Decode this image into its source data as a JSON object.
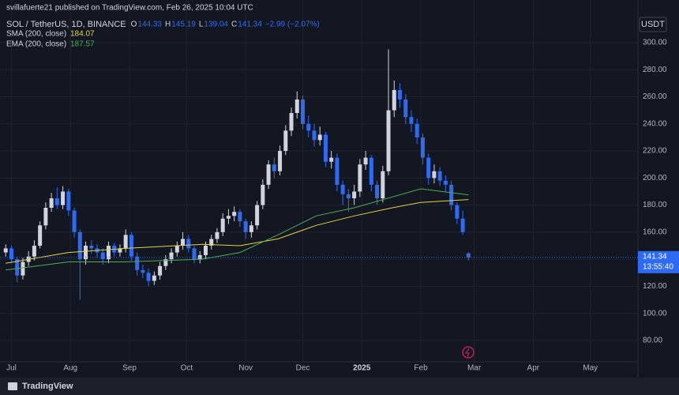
{
  "header": {
    "publisher": "svillafuerte21 published on TradingView.com, Feb 26, 2025 10:04 UTC"
  },
  "footer": {
    "brand": "TradingView"
  },
  "chart_data": {
    "type": "candlestick",
    "title": "SOL / TetherUS, 1D, BINANCE",
    "legend": [
      {
        "key": "O",
        "text": "144.33"
      },
      {
        "key": "H",
        "text": "145.19"
      },
      {
        "key": "L",
        "text": "139.04"
      },
      {
        "key": "C",
        "text": "141.34"
      }
    ],
    "change": "−2.99 (−2.07%)",
    "currency": "USDT",
    "countdown": "13:55:40",
    "up_color": "#d1d4dc",
    "down_color": "#2f6bf2",
    "x": [
      -3,
      0,
      3,
      6,
      9,
      12,
      15,
      18,
      21,
      24,
      27,
      30,
      33,
      36,
      39,
      42,
      45,
      48,
      51,
      54,
      57,
      60,
      63,
      66,
      69,
      72,
      75,
      78,
      81,
      84,
      87,
      90,
      93,
      96,
      99,
      102,
      105,
      108,
      111,
      114,
      117,
      120,
      123,
      126,
      129,
      132,
      135,
      138,
      141,
      144,
      147,
      150,
      153,
      156,
      159,
      162,
      165,
      168,
      171,
      174,
      177,
      180,
      183,
      186,
      189,
      192,
      195,
      198,
      201,
      204,
      207,
      210,
      213,
      216,
      219,
      222,
      225,
      228,
      231,
      234,
      237,
      240
    ],
    "open": [
      145,
      148,
      140,
      128,
      138,
      142,
      150,
      165,
      178,
      185,
      180,
      190,
      176,
      160,
      140,
      150,
      148,
      145,
      140,
      150,
      145,
      148,
      158,
      142,
      132,
      130,
      124,
      128,
      135,
      140,
      145,
      150,
      155,
      148,
      140,
      143,
      150,
      155,
      160,
      170,
      172,
      175,
      168,
      160,
      165,
      180,
      195,
      210,
      205,
      220,
      235,
      248,
      258,
      240,
      235,
      228,
      232,
      212,
      215,
      195,
      188,
      185,
      190,
      210,
      215,
      195,
      185,
      205,
      250,
      265,
      258,
      245,
      240,
      230,
      215,
      200,
      205,
      198,
      195,
      180,
      170,
      144.33
    ],
    "high": [
      151,
      150,
      142,
      141,
      146,
      154,
      168,
      182,
      189,
      193,
      194,
      192,
      178,
      162,
      153,
      154,
      151,
      148,
      153,
      152,
      151,
      162,
      160,
      145,
      136,
      133,
      131,
      138,
      143,
      148,
      153,
      160,
      158,
      150,
      146,
      153,
      158,
      163,
      174,
      177,
      179,
      177,
      170,
      168,
      183,
      199,
      213,
      215,
      224,
      239,
      252,
      264,
      261,
      246,
      240,
      238,
      234,
      220,
      218,
      198,
      192,
      195,
      214,
      220,
      217,
      198,
      209,
      295,
      272,
      270,
      262,
      250,
      244,
      233,
      218,
      210,
      208,
      202,
      198,
      182,
      176,
      145.19
    ],
    "low": [
      142,
      137,
      123,
      125,
      135,
      139,
      148,
      162,
      175,
      177,
      177,
      172,
      156,
      110,
      136,
      144,
      141,
      136,
      137,
      142,
      142,
      145,
      139,
      128,
      126,
      120,
      121,
      125,
      132,
      137,
      142,
      147,
      145,
      137,
      137,
      140,
      147,
      152,
      157,
      166,
      168,
      164,
      155,
      156,
      162,
      177,
      192,
      200,
      202,
      217,
      231,
      244,
      236,
      230,
      223,
      224,
      208,
      207,
      190,
      180,
      175,
      180,
      186,
      206,
      190,
      180,
      182,
      202,
      245,
      252,
      240,
      234,
      225,
      210,
      195,
      196,
      194,
      190,
      176,
      166,
      158,
      139.04
    ],
    "close": [
      148,
      140,
      128,
      138,
      142,
      150,
      165,
      178,
      185,
      180,
      190,
      176,
      160,
      140,
      150,
      148,
      145,
      140,
      150,
      145,
      148,
      158,
      142,
      132,
      130,
      124,
      128,
      135,
      140,
      145,
      150,
      155,
      148,
      140,
      143,
      150,
      155,
      160,
      170,
      172,
      175,
      168,
      160,
      165,
      180,
      195,
      210,
      205,
      220,
      235,
      248,
      258,
      240,
      235,
      228,
      232,
      212,
      215,
      195,
      188,
      185,
      190,
      210,
      215,
      195,
      185,
      205,
      250,
      265,
      258,
      245,
      240,
      230,
      215,
      200,
      205,
      198,
      195,
      180,
      170,
      160,
      141.34
    ],
    "series": [
      {
        "name": "SMA (200, close)",
        "color": "#e6d33c",
        "x": [
          -3,
          30,
          60,
          100,
          120,
          140,
          160,
          180,
          200,
          215,
          240
        ],
        "values": [
          137,
          145,
          148,
          151,
          150,
          155,
          165,
          172,
          178,
          182,
          184.07
        ]
      },
      {
        "name": "EMA (200, close)",
        "color": "#4caf50",
        "x": [
          -3,
          30,
          60,
          100,
          120,
          140,
          160,
          180,
          200,
          215,
          240
        ],
        "values": [
          132,
          138,
          138,
          140,
          145,
          158,
          172,
          178,
          186,
          192,
          187.57
        ]
      }
    ],
    "xlim": [
      -6,
      329
    ],
    "ylim": [
      64.2,
      331.5
    ],
    "xticks": [
      {
        "value": 0,
        "label": "Jul"
      },
      {
        "value": 31,
        "label": "Aug"
      },
      {
        "value": 62,
        "label": "Sep"
      },
      {
        "value": 92,
        "label": "Oct"
      },
      {
        "value": 123,
        "label": "Nov"
      },
      {
        "value": 153,
        "label": "Dec"
      },
      {
        "value": 184,
        "label": "2025"
      },
      {
        "value": 215,
        "label": "Feb"
      },
      {
        "value": 243,
        "label": "Mar"
      },
      {
        "value": 274,
        "label": "Apr"
      },
      {
        "value": 304,
        "label": "May"
      }
    ],
    "yticks": [
      {
        "value": 80,
        "label": "80.00"
      },
      {
        "value": 100,
        "label": "100.00"
      },
      {
        "value": 120,
        "label": "120.00"
      },
      {
        "value": 140,
        "label": "140.00"
      },
      {
        "value": 160,
        "label": "160.00"
      },
      {
        "value": 180,
        "label": "180.00"
      },
      {
        "value": 200,
        "label": "200.00"
      },
      {
        "value": 220,
        "label": "220.00"
      },
      {
        "value": 240,
        "label": "240.00"
      },
      {
        "value": 260,
        "label": "260.00"
      },
      {
        "value": 280,
        "label": "280.00"
      },
      {
        "value": 300,
        "label": "300.00"
      }
    ],
    "grid": true
  }
}
